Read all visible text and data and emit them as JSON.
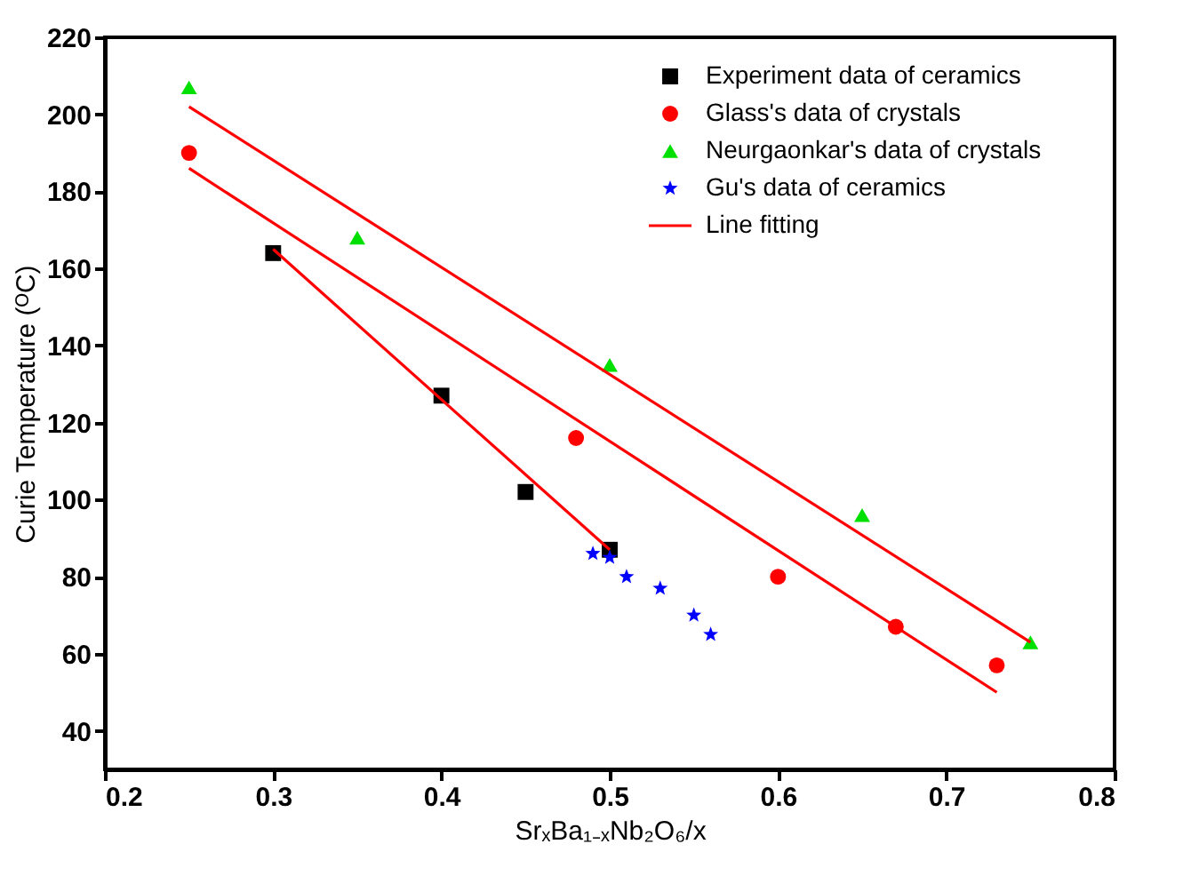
{
  "chart_data": {
    "type": "scatter",
    "xlabel": "SrₓBa₁₋ₓNb₂O₆/x",
    "ylabel": "Curie Temperature (ᴼC)",
    "xlim": [
      0.2,
      0.8
    ],
    "xticks": [
      0.2,
      0.3,
      0.4,
      0.5,
      0.6,
      0.7,
      0.8
    ],
    "ylim": [
      30,
      220
    ],
    "yticks": [
      40,
      60,
      80,
      100,
      120,
      140,
      160,
      180,
      200,
      220
    ],
    "grid": false,
    "legend": "top right",
    "series": [
      {
        "name": "Experiment data of ceramics",
        "color": "#000000",
        "marker": "square",
        "x": [
          0.3,
          0.4,
          0.45,
          0.5
        ],
        "values": [
          164,
          127,
          102,
          87
        ]
      },
      {
        "name": "Glass's data of crystals",
        "color": "#ff0000",
        "marker": "circle",
        "x": [
          0.25,
          0.48,
          0.6,
          0.67,
          0.73
        ],
        "values": [
          190,
          116,
          80,
          67,
          57
        ]
      },
      {
        "name": "Neurgaonkar's data of crystals",
        "color": "#00e000",
        "marker": "triangle",
        "x": [
          0.25,
          0.35,
          0.5,
          0.65,
          0.75
        ],
        "values": [
          207,
          168,
          135,
          96,
          63
        ]
      },
      {
        "name": "Gu's data of ceramics",
        "color": "#0000ff",
        "marker": "star",
        "x": [
          0.49,
          0.5,
          0.51,
          0.53,
          0.55,
          0.56
        ],
        "values": [
          86,
          85,
          80,
          77,
          70,
          65
        ]
      },
      {
        "name": "Line fitting",
        "type": "line",
        "color": "#ff0000",
        "marker": "none",
        "x": [
          0.3,
          0.5
        ],
        "values": [
          165,
          87
        ]
      },
      {
        "type": "line",
        "color": "#ff0000",
        "marker": "none",
        "x": [
          0.25,
          0.73
        ],
        "values": [
          186,
          50
        ]
      },
      {
        "type": "line",
        "color": "#ff0000",
        "marker": "none",
        "x": [
          0.25,
          0.75
        ],
        "values": [
          202,
          63
        ]
      }
    ]
  }
}
